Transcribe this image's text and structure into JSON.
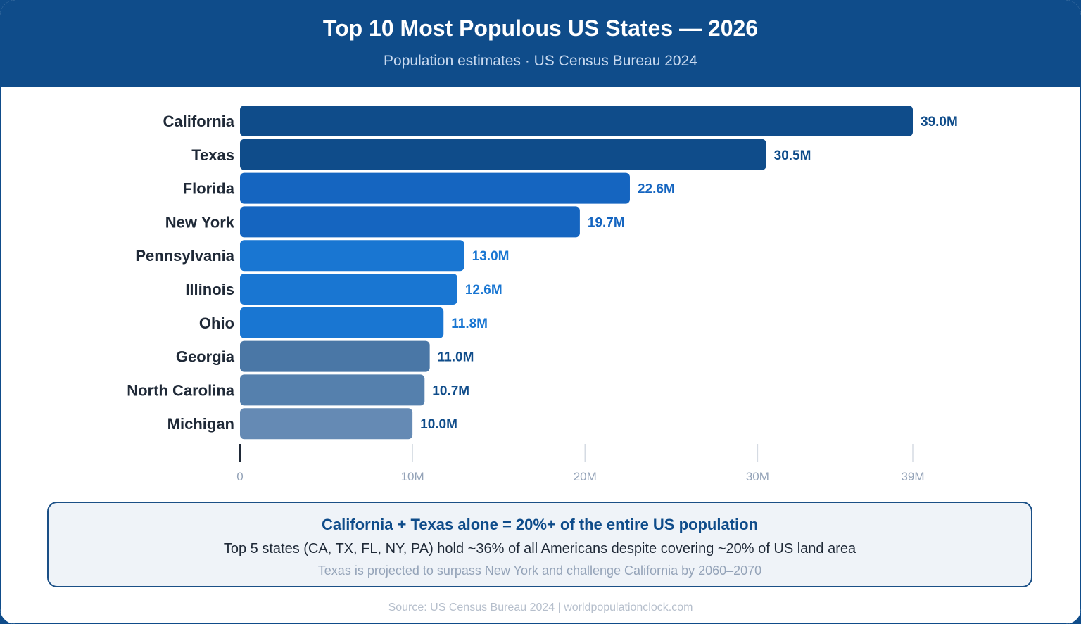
{
  "header": {
    "title": "Top 10 Most Populous US States — 2026",
    "subtitle": "Population estimates · US Census Bureau 2024"
  },
  "chart_data": {
    "type": "bar",
    "orientation": "horizontal",
    "categories": [
      "California",
      "Texas",
      "Florida",
      "New York",
      "Pennsylvania",
      "Illinois",
      "Ohio",
      "Georgia",
      "North Carolina",
      "Michigan"
    ],
    "values": [
      39.0,
      30.5,
      22.6,
      19.7,
      13.0,
      12.6,
      11.8,
      11.0,
      10.7,
      10.0
    ],
    "value_labels": [
      "39.0M",
      "30.5M",
      "22.6M",
      "19.7M",
      "13.0M",
      "12.6M",
      "11.8M",
      "11.0M",
      "10.7M",
      "10.0M"
    ],
    "bar_colors": [
      "#0f4c8a",
      "#0f4c8a",
      "#1565c0",
      "#1565c0",
      "#1976d2",
      "#1976d2",
      "#1976d2",
      "#4a77a6",
      "#5580ad",
      "#658ab4"
    ],
    "label_colors": [
      "#0f4c8a",
      "#0f4c8a",
      "#1565c0",
      "#1565c0",
      "#1976d2",
      "#1976d2",
      "#1976d2",
      "#0f4c8a",
      "#0f4c8a",
      "#0f4c8a"
    ],
    "xticks": [
      0,
      10,
      20,
      30,
      39
    ],
    "xtick_labels": [
      "0",
      "10M",
      "20M",
      "30M",
      "39M"
    ],
    "xlim": [
      0,
      39
    ],
    "unit": "M",
    "grid": "vertical-ticks"
  },
  "callout": {
    "title": "California + Texas alone = 20%+ of the entire US population",
    "body": "Top 5 states (CA, TX, FL, NY, PA) hold ~36% of all Americans despite covering ~20% of US land area",
    "note": "Texas is projected to surpass New York and challenge California by 2060–2070"
  },
  "footer": {
    "source": "Source: US Census Bureau 2024 | worldpopulationclock.com"
  }
}
